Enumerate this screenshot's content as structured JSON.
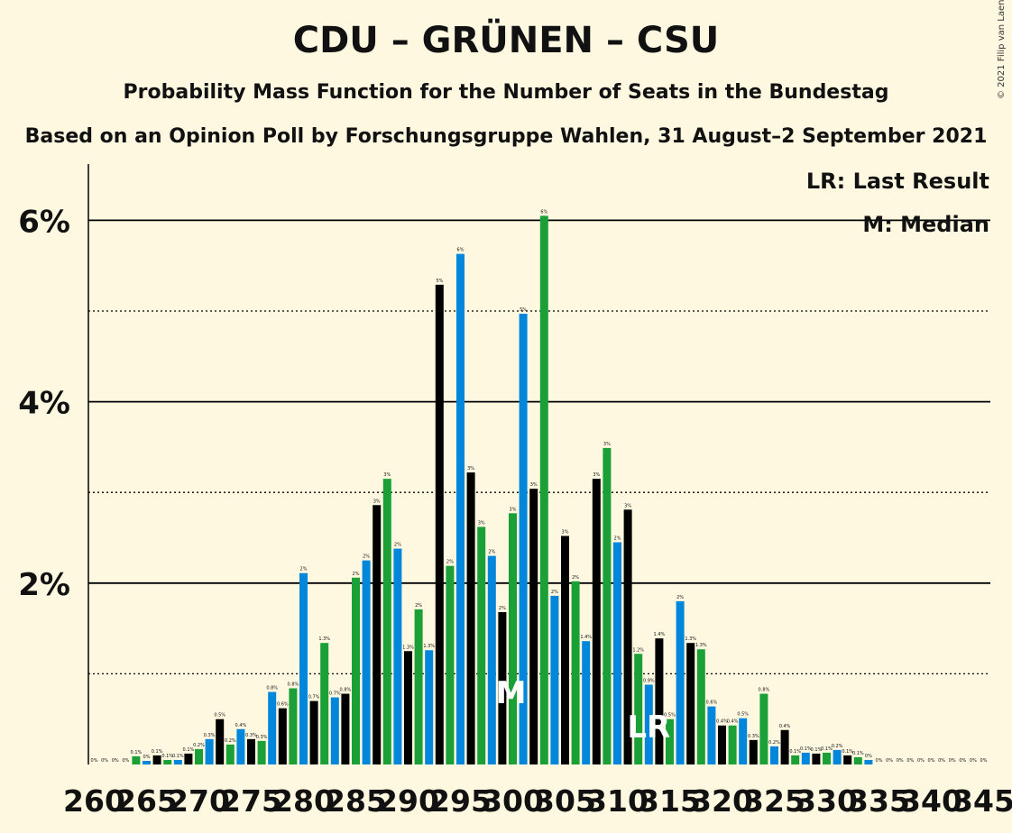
{
  "title": "CDU – GRÜNEN – CSU",
  "subtitle": "Probability Mass Function for the Number of Seats in the Bundestag",
  "subtitle2": "Based on an Opinion Poll by Forschungsgruppe Wahlen, 31 August–2 September 2021",
  "copyright": "© 2021 Filip van Laenen",
  "legend": {
    "last_result": "LR: Last Result",
    "median": "M: Median"
  },
  "markers": {
    "median_label": "M",
    "median_seat": 300,
    "last_result_label": "LR",
    "last_result_seat": 313
  },
  "colors": {
    "black": "#000000",
    "green": "#1AA037",
    "blue": "#0087DC",
    "background": "#FFF8E1"
  },
  "chart_data": {
    "type": "bar",
    "xlabel": "",
    "ylabel": "",
    "xlim": [
      260,
      345
    ],
    "ylim": [
      0,
      6.5
    ],
    "y_ticks": [
      {
        "value": 2,
        "label": "2%"
      },
      {
        "value": 4,
        "label": "4%"
      },
      {
        "value": 6,
        "label": "6%"
      }
    ],
    "x_ticks": [
      260,
      265,
      270,
      275,
      280,
      285,
      290,
      295,
      300,
      305,
      310,
      315,
      320,
      325,
      330,
      335,
      340,
      345
    ],
    "color_cycle": [
      "black",
      "green",
      "blue"
    ],
    "x": [
      260,
      261,
      262,
      263,
      264,
      265,
      266,
      267,
      268,
      269,
      270,
      271,
      272,
      273,
      274,
      275,
      276,
      277,
      278,
      279,
      280,
      281,
      282,
      283,
      284,
      285,
      286,
      287,
      288,
      289,
      290,
      291,
      292,
      293,
      294,
      295,
      296,
      297,
      298,
      299,
      300,
      301,
      302,
      303,
      304,
      305,
      306,
      307,
      308,
      309,
      310,
      311,
      312,
      313,
      314,
      315,
      316,
      317,
      318,
      319,
      320,
      321,
      322,
      323,
      324,
      325,
      326,
      327,
      328,
      329,
      330,
      331,
      332,
      333,
      334,
      335,
      336,
      337,
      338,
      339,
      340,
      341,
      342,
      343,
      344,
      345
    ],
    "values": [
      0.0,
      0.0,
      0.0,
      0.0,
      0.09,
      0.04,
      0.1,
      0.05,
      0.05,
      0.12,
      0.17,
      0.28,
      0.5,
      0.22,
      0.39,
      0.28,
      0.26,
      0.8,
      0.62,
      0.84,
      2.11,
      0.7,
      1.34,
      0.74,
      0.78,
      2.06,
      2.25,
      2.86,
      3.15,
      2.38,
      1.25,
      1.71,
      1.26,
      5.29,
      2.19,
      5.63,
      3.22,
      2.62,
      2.3,
      1.68,
      2.77,
      4.97,
      3.04,
      6.05,
      1.86,
      2.52,
      2.02,
      1.36,
      3.15,
      3.49,
      2.45,
      2.81,
      1.22,
      0.88,
      1.39,
      0.5,
      1.8,
      1.34,
      1.27,
      0.64,
      0.43,
      0.43,
      0.51,
      0.27,
      0.78,
      0.2,
      0.38,
      0.1,
      0.13,
      0.12,
      0.13,
      0.16,
      0.1,
      0.08,
      0.05,
      0.0,
      0.0,
      0.0,
      0.0,
      0.0,
      0.0,
      0.0,
      0.0,
      0.0,
      0.0,
      0.0
    ],
    "value_labels": [
      "0%",
      "0%",
      "0%",
      "0%",
      "0.1%",
      "0%",
      "0.1%",
      "0.1%",
      "0.1%",
      "0.1%",
      "0.2%",
      "0.3%",
      "0.5%",
      "0.2%",
      "0.4%",
      "0.3%",
      "0.3%",
      "0.8%",
      "0.6%",
      "0.8%",
      "2%",
      "0.7%",
      "1.3%",
      "0.7%",
      "0.8%",
      "2%",
      "2%",
      "3%",
      "3%",
      "2%",
      "1.3%",
      "2%",
      "1.3%",
      "5%",
      "2%",
      "6%",
      "3%",
      "3%",
      "2%",
      "2%",
      "3%",
      "5%",
      "3%",
      "6%",
      "2%",
      "3%",
      "2%",
      "1.4%",
      "3%",
      "3%",
      "2%",
      "3%",
      "1.2%",
      "0.9%",
      "1.4%",
      "0.5%",
      "2%",
      "1.3%",
      "1.3%",
      "0.6%",
      "0.4%",
      "0.4%",
      "0.5%",
      "0.3%",
      "0.8%",
      "0.2%",
      "0.4%",
      "0.1%",
      "0.1%",
      "0.1%",
      "0.1%",
      "0.2%",
      "0.1%",
      "0.1%",
      "0%",
      "0%",
      "0%",
      "0%",
      "0%",
      "0%",
      "0%",
      "0%",
      "0%",
      "0%",
      "0%",
      "0%"
    ],
    "grid": {
      "solid": [
        2,
        4,
        6
      ],
      "dotted": [
        1,
        3,
        5
      ]
    }
  }
}
